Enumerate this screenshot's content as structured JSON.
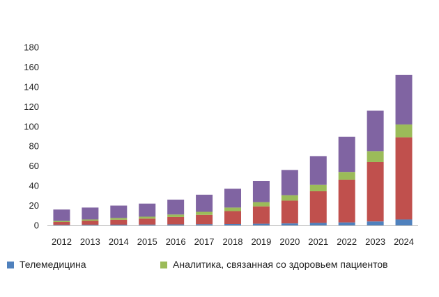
{
  "chart_data": {
    "type": "bar",
    "stacked": true,
    "categories": [
      "2012",
      "2013",
      "2014",
      "2015",
      "2016",
      "2017",
      "2018",
      "2019",
      "2020",
      "2021",
      "2022",
      "2023",
      "2024"
    ],
    "series": [
      {
        "name": "Телемедицина",
        "color": "#4f81bd",
        "values": [
          0.5,
          0.6,
          0.7,
          0.8,
          1,
          1.2,
          1.4,
          1.7,
          2,
          2.5,
          3,
          4,
          6
        ]
      },
      {
        "color": "#c0504d",
        "values": [
          3,
          4,
          5,
          6,
          7.5,
          9.5,
          13,
          17.5,
          23,
          32,
          43,
          60,
          83
        ]
      },
      {
        "name": "Аналитика, связанная со здоровьем пациентов",
        "color": "#9bbb59",
        "values": [
          1,
          1.4,
          1.8,
          2,
          2.5,
          3,
          3.6,
          4.3,
          5.5,
          6.5,
          8,
          11,
          13
        ]
      },
      {
        "color": "#8064a2",
        "values": [
          11.5,
          12,
          12.5,
          13.2,
          15,
          17.3,
          19,
          21.5,
          25.5,
          29,
          35.5,
          41,
          50
        ]
      }
    ],
    "title": "",
    "xlabel": "",
    "ylabel": "",
    "ylim": [
      0,
      180
    ],
    "yticks": [
      0,
      20,
      40,
      60,
      80,
      100,
      120,
      140,
      160,
      180
    ],
    "grid": false,
    "legend_position": "bottom"
  },
  "legend": {
    "items": [
      {
        "label": "Телемедицина",
        "color": "#4f81bd"
      },
      {
        "label": "Аналитика, связанная со здоровьем пациентов",
        "color": "#9bbb59"
      }
    ]
  }
}
